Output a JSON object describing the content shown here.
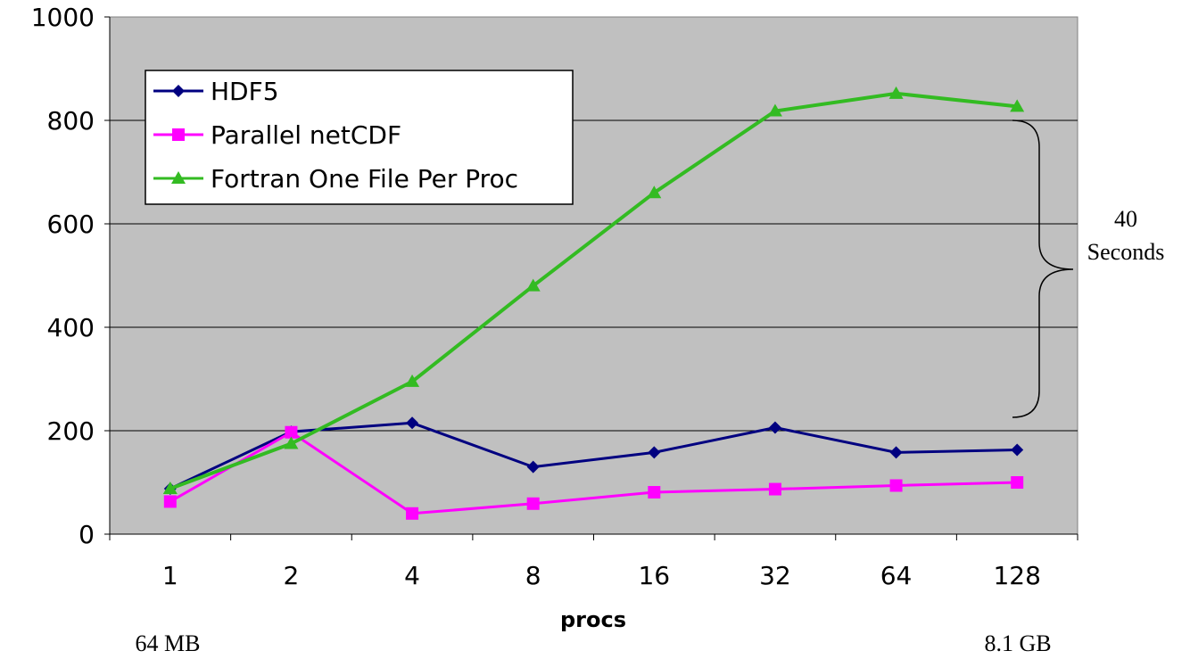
{
  "chart_data": {
    "type": "line",
    "categories": [
      "1",
      "2",
      "4",
      "8",
      "16",
      "32",
      "64",
      "128"
    ],
    "series": [
      {
        "name": "HDF5",
        "values": [
          88,
          198,
          215,
          130,
          158,
          206,
          158,
          163
        ],
        "color": "#000080",
        "marker": "diamond"
      },
      {
        "name": "Parallel netCDF",
        "values": [
          63,
          197,
          40,
          59,
          81,
          87,
          94,
          100
        ],
        "color": "#ff00ff",
        "marker": "square"
      },
      {
        "name": "Fortran One File Per Proc",
        "values": [
          88,
          175,
          295,
          480,
          660,
          818,
          852,
          827
        ],
        "color": "#33bb22",
        "marker": "triangle"
      }
    ],
    "title": "",
    "xlabel": "procs",
    "ylabel": "",
    "ylim": [
      0,
      1000
    ],
    "yticks": [
      "0",
      "200",
      "400",
      "600",
      "800",
      "1000"
    ],
    "grid": true,
    "plot_background": "#c0c0c0",
    "legend_position": "top-left",
    "annotations": {
      "brace_label_line1": "40",
      "brace_label_line2": "Seconds",
      "x_start_note": "64 MB",
      "x_end_note": "8.1 GB"
    }
  }
}
